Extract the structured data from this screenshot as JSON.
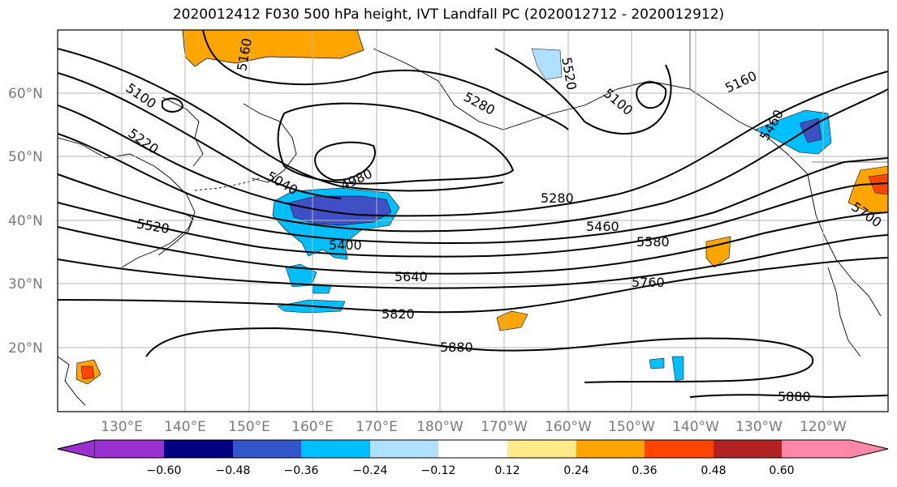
{
  "title": "2020012412 F030 500 hPa height, IVT Landfall PC (2020012712 - 2020012912)",
  "map": {
    "lat_labels": [
      "60°N",
      "50°N",
      "40°N",
      "30°N",
      "20°N"
    ],
    "lon_labels": [
      "130°E",
      "140°E",
      "150°E",
      "160°E",
      "170°E",
      "180°W",
      "170°W",
      "160°W",
      "150°W",
      "140°W",
      "130°W",
      "120°W"
    ],
    "contour_labels": [
      "5100",
      "5160",
      "5220",
      "5280",
      "5520",
      "4980",
      "5040",
      "5400",
      "5280",
      "5460",
      "5580",
      "5640",
      "5760",
      "5820",
      "5880",
      "5880",
      "5100",
      "5160",
      "5520",
      "5700",
      "5460"
    ]
  },
  "colorbar": {
    "ticks": [
      "−0.60",
      "−0.48",
      "−0.36",
      "−0.24",
      "−0.12",
      "0.12",
      "0.24",
      "0.36",
      "0.48",
      "0.60"
    ],
    "colors": [
      "#9b30d0",
      "#000080",
      "#3355cc",
      "#00bfff",
      "#b0e0ff",
      "#ffffff",
      "#ffeb8a",
      "#ffa500",
      "#ff4500",
      "#b22222",
      "#ff88aa"
    ]
  }
}
